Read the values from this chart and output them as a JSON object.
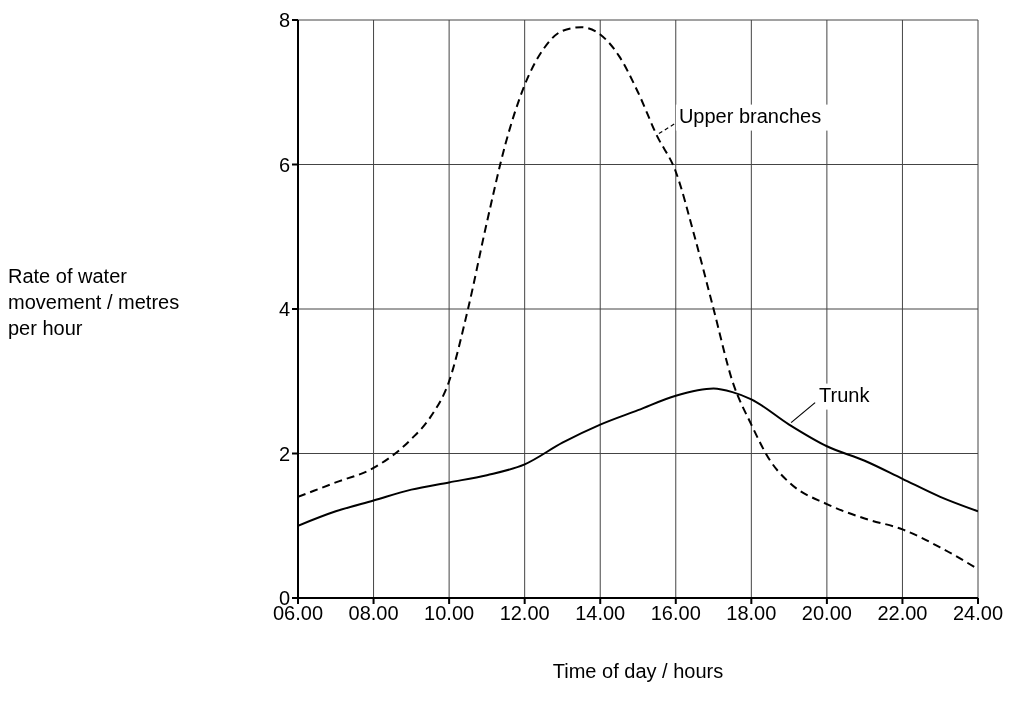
{
  "chart_data": {
    "type": "line",
    "xlabel": "Time of day / hours",
    "ylabel": "Rate of water movement / metres per hour",
    "xlim": [
      6,
      24
    ],
    "ylim": [
      0,
      8
    ],
    "xticks": [
      {
        "value": 6,
        "label": "06.00"
      },
      {
        "value": 8,
        "label": "08.00"
      },
      {
        "value": 10,
        "label": "10.00"
      },
      {
        "value": 12,
        "label": "12.00"
      },
      {
        "value": 14,
        "label": "14.00"
      },
      {
        "value": 16,
        "label": "16.00"
      },
      {
        "value": 18,
        "label": "18.00"
      },
      {
        "value": 20,
        "label": "20.00"
      },
      {
        "value": 22,
        "label": "22.00"
      },
      {
        "value": 24,
        "label": "24.00"
      }
    ],
    "yticks": [
      0,
      2,
      4,
      6,
      8
    ],
    "grid": true,
    "marker": "none",
    "series": [
      {
        "name": "Upper branches",
        "color": "#000000",
        "line_style": "dashed",
        "x": [
          6,
          7,
          8,
          9,
          9.5,
          10,
          10.5,
          11,
          11.5,
          12,
          12.5,
          13,
          13.5,
          14,
          14.5,
          15,
          15.5,
          16,
          16.5,
          17,
          17.5,
          18,
          18.5,
          19,
          20,
          21,
          22,
          23,
          24
        ],
        "values": [
          1.4,
          1.6,
          1.8,
          2.2,
          2.5,
          3.0,
          4.0,
          5.2,
          6.3,
          7.1,
          7.6,
          7.85,
          7.9,
          7.8,
          7.5,
          7.0,
          6.4,
          5.9,
          5.0,
          4.0,
          3.0,
          2.4,
          1.9,
          1.6,
          1.3,
          1.1,
          0.95,
          0.7,
          0.4
        ]
      },
      {
        "name": "Trunk",
        "color": "#000000",
        "line_style": "solid",
        "x": [
          6,
          7,
          8,
          9,
          10,
          11,
          12,
          13,
          14,
          15,
          16,
          17,
          17.5,
          18,
          19,
          20,
          21,
          22,
          23,
          24
        ],
        "values": [
          1.0,
          1.2,
          1.35,
          1.5,
          1.6,
          1.7,
          1.85,
          2.15,
          2.4,
          2.6,
          2.8,
          2.9,
          2.85,
          2.75,
          2.4,
          2.1,
          1.9,
          1.65,
          1.4,
          1.2
        ]
      }
    ]
  }
}
